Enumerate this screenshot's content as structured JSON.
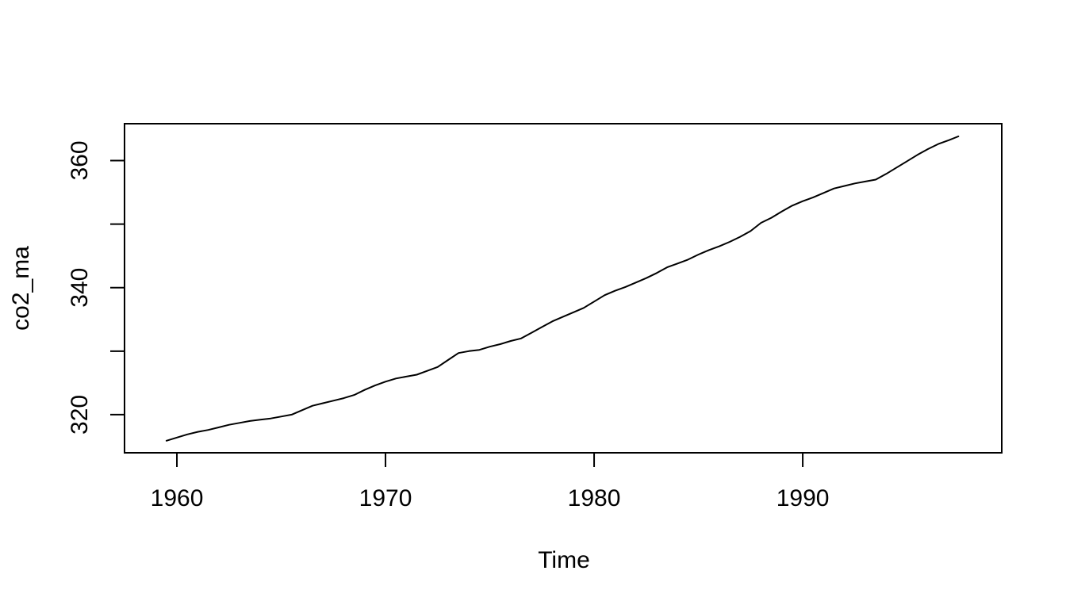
{
  "figure": {
    "background": "#ffffff",
    "foreground": "#000000",
    "line_color": "#000000"
  },
  "chart_data": {
    "type": "line",
    "title": "",
    "xlabel": "Time",
    "ylabel": "co2_ma",
    "grid": false,
    "legend": "none",
    "xlim": [
      1957.49,
      1999.54
    ],
    "ylim": [
      314.0,
      365.8
    ],
    "x_ticks": [
      1960,
      1970,
      1980,
      1990
    ],
    "x_tick_labels": [
      "1960",
      "1970",
      "1980",
      "1990"
    ],
    "y_ticks": [
      320,
      330,
      340,
      350,
      360
    ],
    "y_tick_labels": [
      "320",
      "",
      "340",
      "",
      "360"
    ],
    "series": [
      {
        "name": "co2_ma",
        "color": "#000000",
        "x": [
          1959.5,
          1960.0,
          1960.5,
          1961.0,
          1961.5,
          1962.0,
          1962.5,
          1963.0,
          1963.5,
          1964.0,
          1964.5,
          1965.0,
          1965.5,
          1966.0,
          1966.5,
          1967.0,
          1967.5,
          1968.0,
          1968.5,
          1969.0,
          1969.5,
          1970.0,
          1970.5,
          1971.0,
          1971.5,
          1972.0,
          1972.5,
          1973.0,
          1973.5,
          1974.0,
          1974.5,
          1975.0,
          1975.5,
          1976.0,
          1976.5,
          1977.0,
          1977.5,
          1978.0,
          1978.5,
          1979.0,
          1979.5,
          1980.0,
          1980.5,
          1981.0,
          1981.5,
          1982.0,
          1982.5,
          1983.0,
          1983.5,
          1984.0,
          1984.5,
          1985.0,
          1985.5,
          1986.0,
          1986.5,
          1987.0,
          1987.5,
          1988.0,
          1988.5,
          1989.0,
          1989.5,
          1990.0,
          1990.5,
          1991.0,
          1991.5,
          1992.0,
          1992.5,
          1993.0,
          1993.5,
          1994.0,
          1994.5,
          1995.0,
          1995.5,
          1996.0,
          1996.5,
          1997.0,
          1997.46
        ],
        "y": [
          315.9,
          316.4,
          316.9,
          317.3,
          317.6,
          318.0,
          318.4,
          318.7,
          319.0,
          319.2,
          319.4,
          319.7,
          320.0,
          320.7,
          321.4,
          321.8,
          322.2,
          322.6,
          323.1,
          323.9,
          324.6,
          325.2,
          325.7,
          326.0,
          326.3,
          326.9,
          327.5,
          328.6,
          329.7,
          330.0,
          330.2,
          330.7,
          331.1,
          331.6,
          332.0,
          332.9,
          333.8,
          334.7,
          335.4,
          336.1,
          336.8,
          337.8,
          338.8,
          339.5,
          340.1,
          340.8,
          341.5,
          342.3,
          343.2,
          343.8,
          344.4,
          345.2,
          345.9,
          346.5,
          347.2,
          348.0,
          348.9,
          350.2,
          351.0,
          352.0,
          352.9,
          353.6,
          354.2,
          354.9,
          355.6,
          356.0,
          356.4,
          356.7,
          357.0,
          357.9,
          358.9,
          359.9,
          360.9,
          361.8,
          362.6,
          363.2,
          363.8
        ]
      }
    ]
  }
}
